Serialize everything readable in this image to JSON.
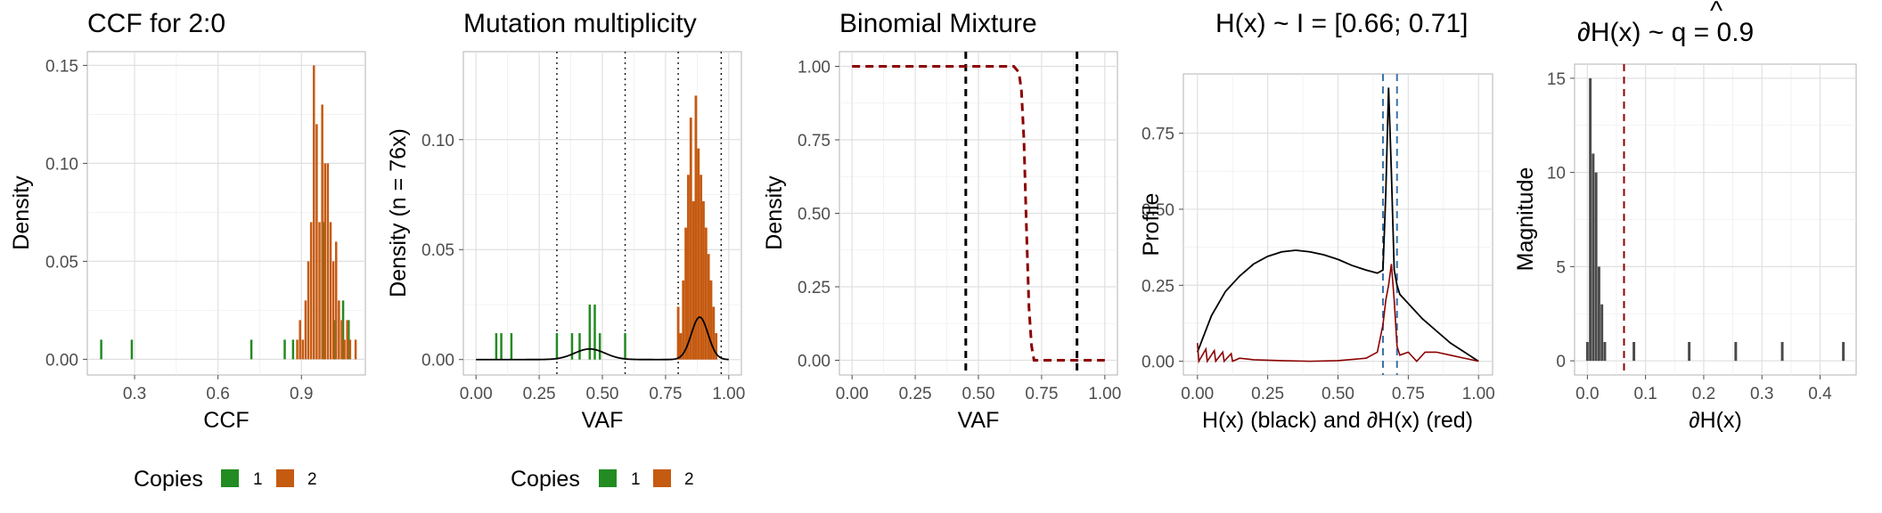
{
  "colors": {
    "copies_1": "#228B22",
    "copies_2": "#C55A11",
    "grid": "#e0e0e0",
    "panel_border": "#b3b3b3",
    "mixture_red": "#8B0000",
    "peak_blue": "#3A72A8",
    "magnitude_bar": "#4a4a4a"
  },
  "chart_data": [
    {
      "type": "bar",
      "title": "CCF for 2:0",
      "xlabel": "CCF",
      "ylabel": "Density",
      "xlim": [
        0.13,
        1.13
      ],
      "ylim": [
        -0.008,
        0.157
      ],
      "xticks": [
        0.3,
        0.6,
        0.9
      ],
      "yticks": [
        0.0,
        0.05,
        0.1,
        0.15
      ],
      "xtick_labels": [
        "0.3",
        "0.6",
        "0.9"
      ],
      "ytick_labels": [
        "0.00",
        "0.05",
        "0.10",
        "0.15"
      ],
      "legend": {
        "title": "Copies",
        "items": [
          "1",
          "2"
        ],
        "position": "bottom"
      },
      "series": [
        {
          "name": "1",
          "bar_width": 0.008,
          "x": [
            0.18,
            0.29,
            0.72,
            0.84,
            0.87,
            0.98,
            1.02,
            1.05,
            1.07
          ],
          "y": [
            0.01,
            0.01,
            0.01,
            0.01,
            0.01,
            0.07,
            0.02,
            0.03,
            0.02
          ]
        },
        {
          "name": "2",
          "bar_width": 0.008,
          "x": [
            0.885,
            0.895,
            0.905,
            0.915,
            0.925,
            0.935,
            0.945,
            0.955,
            0.965,
            0.975,
            0.985,
            0.995,
            1.005,
            1.015,
            1.025,
            1.035,
            1.045,
            1.055,
            1.065,
            1.075,
            1.095
          ],
          "y": [
            0.01,
            0.02,
            0.01,
            0.03,
            0.05,
            0.07,
            0.15,
            0.12,
            0.07,
            0.13,
            0.1,
            0.1,
            0.07,
            0.05,
            0.06,
            0.03,
            0.02,
            0.01,
            0.02,
            0.01,
            0.01
          ]
        }
      ]
    },
    {
      "type": "bar",
      "title": "Mutation multiplicity",
      "xlabel": "VAF",
      "ylabel": "Density (n = 76x)",
      "xlim": [
        -0.05,
        1.05
      ],
      "ylim": [
        -0.007,
        0.14
      ],
      "xticks": [
        0,
        0.25,
        0.5,
        0.75,
        1.0
      ],
      "yticks": [
        0.0,
        0.05,
        0.1
      ],
      "xtick_labels": [
        "0.00",
        "0.25",
        "0.50",
        "0.75",
        "1.00"
      ],
      "ytick_labels": [
        "0.00",
        "0.05",
        "0.10"
      ],
      "vlines_dotted": [
        0.32,
        0.59,
        0.8,
        0.97
      ],
      "legend": {
        "title": "Copies",
        "items": [
          "1",
          "2"
        ],
        "position": "bottom"
      },
      "series": [
        {
          "name": "1",
          "bar_width": 0.008,
          "x": [
            0.08,
            0.1,
            0.14,
            0.32,
            0.38,
            0.41,
            0.45,
            0.47,
            0.49,
            0.59
          ],
          "y": [
            0.012,
            0.012,
            0.012,
            0.012,
            0.012,
            0.012,
            0.025,
            0.025,
            0.012,
            0.012
          ]
        },
        {
          "name": "2",
          "bar_width": 0.01,
          "x": [
            0.8,
            0.81,
            0.82,
            0.83,
            0.84,
            0.85,
            0.86,
            0.87,
            0.88,
            0.89,
            0.9,
            0.91,
            0.92,
            0.93,
            0.94,
            0.95
          ],
          "y": [
            0.024,
            0.012,
            0.036,
            0.06,
            0.084,
            0.11,
            0.072,
            0.12,
            0.096,
            0.084,
            0.072,
            0.06,
            0.048,
            0.036,
            0.024,
            0.012
          ]
        },
        {
          "name": "density",
          "type": "line",
          "mixture": [
            {
              "w": 0.2,
              "mu": 0.45,
              "sd": 0.06
            },
            {
              "w": 0.8,
              "mu": 0.885,
              "sd": 0.033
            }
          ],
          "scale": 0.0087
        }
      ]
    },
    {
      "type": "line",
      "title": "Binomial Mixture",
      "xlabel": "VAF",
      "ylabel": "Density",
      "xlim": [
        -0.05,
        1.05
      ],
      "ylim": [
        -0.05,
        1.05
      ],
      "xticks": [
        0,
        0.25,
        0.5,
        0.75,
        1.0
      ],
      "yticks": [
        0,
        0.25,
        0.5,
        0.75,
        1.0
      ],
      "xtick_labels": [
        "0.00",
        "0.25",
        "0.50",
        "0.75",
        "1.00"
      ],
      "ytick_labels": [
        "0.00",
        "0.25",
        "0.50",
        "0.75",
        "1.00"
      ],
      "vlines_dashed": [
        0.45,
        0.89
      ],
      "series": [
        {
          "name": "mixture",
          "style": "dashed",
          "x": [
            0,
            0.64,
            0.66,
            0.67,
            0.68,
            0.69,
            0.7,
            0.71,
            0.72,
            0.74,
            1.0
          ],
          "y": [
            1.0,
            1.0,
            0.98,
            0.92,
            0.75,
            0.45,
            0.18,
            0.05,
            0.0,
            0.0,
            0.0
          ]
        }
      ]
    },
    {
      "type": "line",
      "title": "H(x) ~ I = [0.66; 0.71]",
      "xlabel": "H(x) (black) and ∂H(x) (red)",
      "ylabel": "Profile",
      "xlim": [
        -0.05,
        1.05
      ],
      "ylim": [
        -0.045,
        0.945
      ],
      "xticks": [
        0,
        0.25,
        0.5,
        0.75,
        1.0
      ],
      "yticks": [
        0,
        0.25,
        0.5,
        0.75
      ],
      "xtick_labels": [
        "0.00",
        "0.25",
        "0.50",
        "0.75",
        "1.00"
      ],
      "ytick_labels": [
        "0.00",
        "0.25",
        "0.50",
        "0.75"
      ],
      "vlines_dashed": [
        0.66,
        0.71
      ],
      "series": [
        {
          "name": "H(x)",
          "x": [
            0,
            0.05,
            0.1,
            0.15,
            0.2,
            0.25,
            0.3,
            0.35,
            0.4,
            0.45,
            0.5,
            0.55,
            0.6,
            0.64,
            0.66,
            0.67,
            0.68,
            0.69,
            0.7,
            0.71,
            0.72,
            0.75,
            0.8,
            0.85,
            0.9,
            0.95,
            1.0
          ],
          "y": [
            0.03,
            0.15,
            0.23,
            0.28,
            0.32,
            0.345,
            0.36,
            0.365,
            0.36,
            0.35,
            0.335,
            0.315,
            0.3,
            0.29,
            0.3,
            0.55,
            0.9,
            0.62,
            0.3,
            0.25,
            0.22,
            0.19,
            0.14,
            0.1,
            0.06,
            0.03,
            0.0
          ]
        },
        {
          "name": "∂H(x)",
          "x": [
            0,
            0.005,
            0.03,
            0.035,
            0.06,
            0.065,
            0.09,
            0.095,
            0.12,
            0.125,
            0.15,
            0.2,
            0.3,
            0.4,
            0.5,
            0.6,
            0.64,
            0.66,
            0.67,
            0.68,
            0.69,
            0.7,
            0.71,
            0.72,
            0.75,
            0.78,
            0.81,
            0.85,
            0.9,
            0.95,
            1.0
          ],
          "y": [
            0.06,
            0.0,
            0.04,
            0.0,
            0.035,
            0.0,
            0.03,
            0.0,
            0.025,
            0.0,
            0.01,
            0.005,
            0.002,
            0.0,
            0.002,
            0.01,
            0.03,
            0.12,
            0.2,
            0.25,
            0.32,
            0.2,
            0.05,
            0.02,
            0.03,
            0.0,
            0.03,
            0.03,
            0.02,
            0.01,
            0.0
          ]
        }
      ]
    },
    {
      "type": "bar",
      "title": "∂H(x) ~  q = 0.9",
      "title_hat": "^",
      "xlabel": "∂H(x)",
      "ylabel": "Magnitude",
      "xlim": [
        -0.022,
        0.462
      ],
      "ylim": [
        -0.75,
        15.75
      ],
      "xticks": [
        0.0,
        0.1,
        0.2,
        0.3,
        0.4
      ],
      "yticks": [
        0,
        5,
        10,
        15
      ],
      "xtick_labels": [
        "0.0",
        "0.1",
        "0.2",
        "0.3",
        "0.4"
      ],
      "ytick_labels": [
        "0",
        "5",
        "10",
        "15"
      ],
      "vlines_dashed": [
        0.063
      ],
      "series": [
        {
          "name": "magnitude",
          "bar_width": 0.0045,
          "x": [
            0.0,
            0.005,
            0.01,
            0.015,
            0.02,
            0.025,
            0.03,
            0.08,
            0.175,
            0.255,
            0.335,
            0.44
          ],
          "y": [
            1,
            15,
            11,
            10,
            5,
            3,
            1,
            1,
            1,
            1,
            1,
            1
          ]
        }
      ]
    }
  ]
}
